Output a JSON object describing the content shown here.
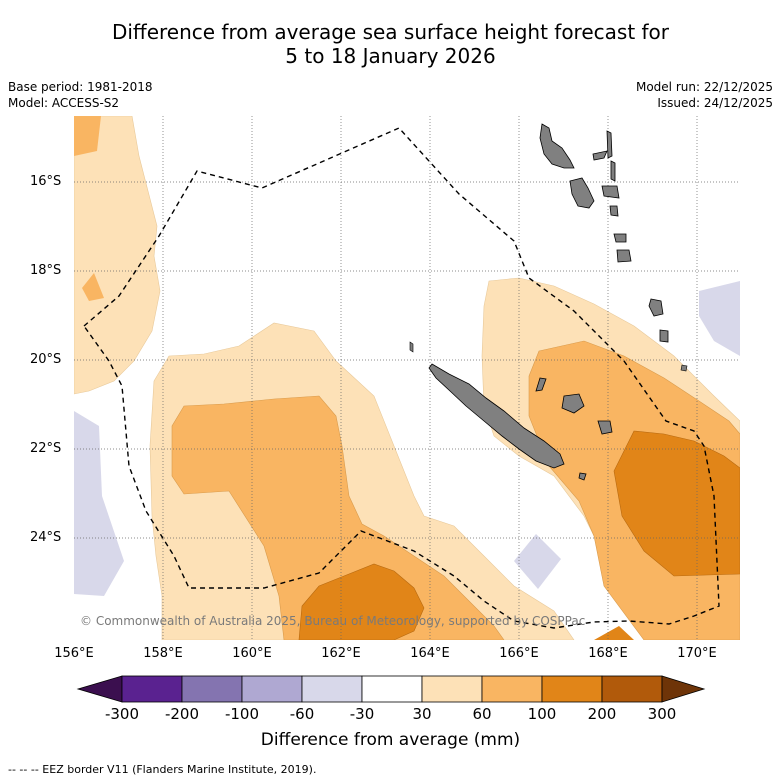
{
  "title_line1": "Difference from average sea surface height forecast for",
  "title_line2": "5 to 18 January 2026",
  "base_period": "Base period: 1981-2018",
  "model": "Model: ACCESS-S2",
  "model_run": "Model run: 22/12/2025",
  "issued": "Issued: 24/12/2025",
  "lat_labels": [
    "16°S",
    "18°S",
    "20°S",
    "22°S",
    "24°S"
  ],
  "lon_labels": [
    "156°E",
    "158°E",
    "160°E",
    "162°E",
    "164°E",
    "166°E",
    "168°E",
    "170°E"
  ],
  "copyright": "© Commonwealth of Australia 2025, Bureau of Meteorology, supported by COSPPac",
  "colorbar": {
    "ticks": [
      "-300",
      "-200",
      "-100",
      "-60",
      "-30",
      "30",
      "60",
      "100",
      "200",
      "300"
    ],
    "label": "Difference from average (mm)",
    "colors": [
      "#3b0f4f",
      "#5a2290",
      "#8474b0",
      "#afa8d2",
      "#d8d8ea",
      "#ffffff",
      "#fde1b7",
      "#f9b562",
      "#e18518",
      "#b15a0b",
      "#6e3408"
    ]
  },
  "eez_note": "--  --  -- EEZ border V11 (Flanders Marine Institute, 2019)."
}
